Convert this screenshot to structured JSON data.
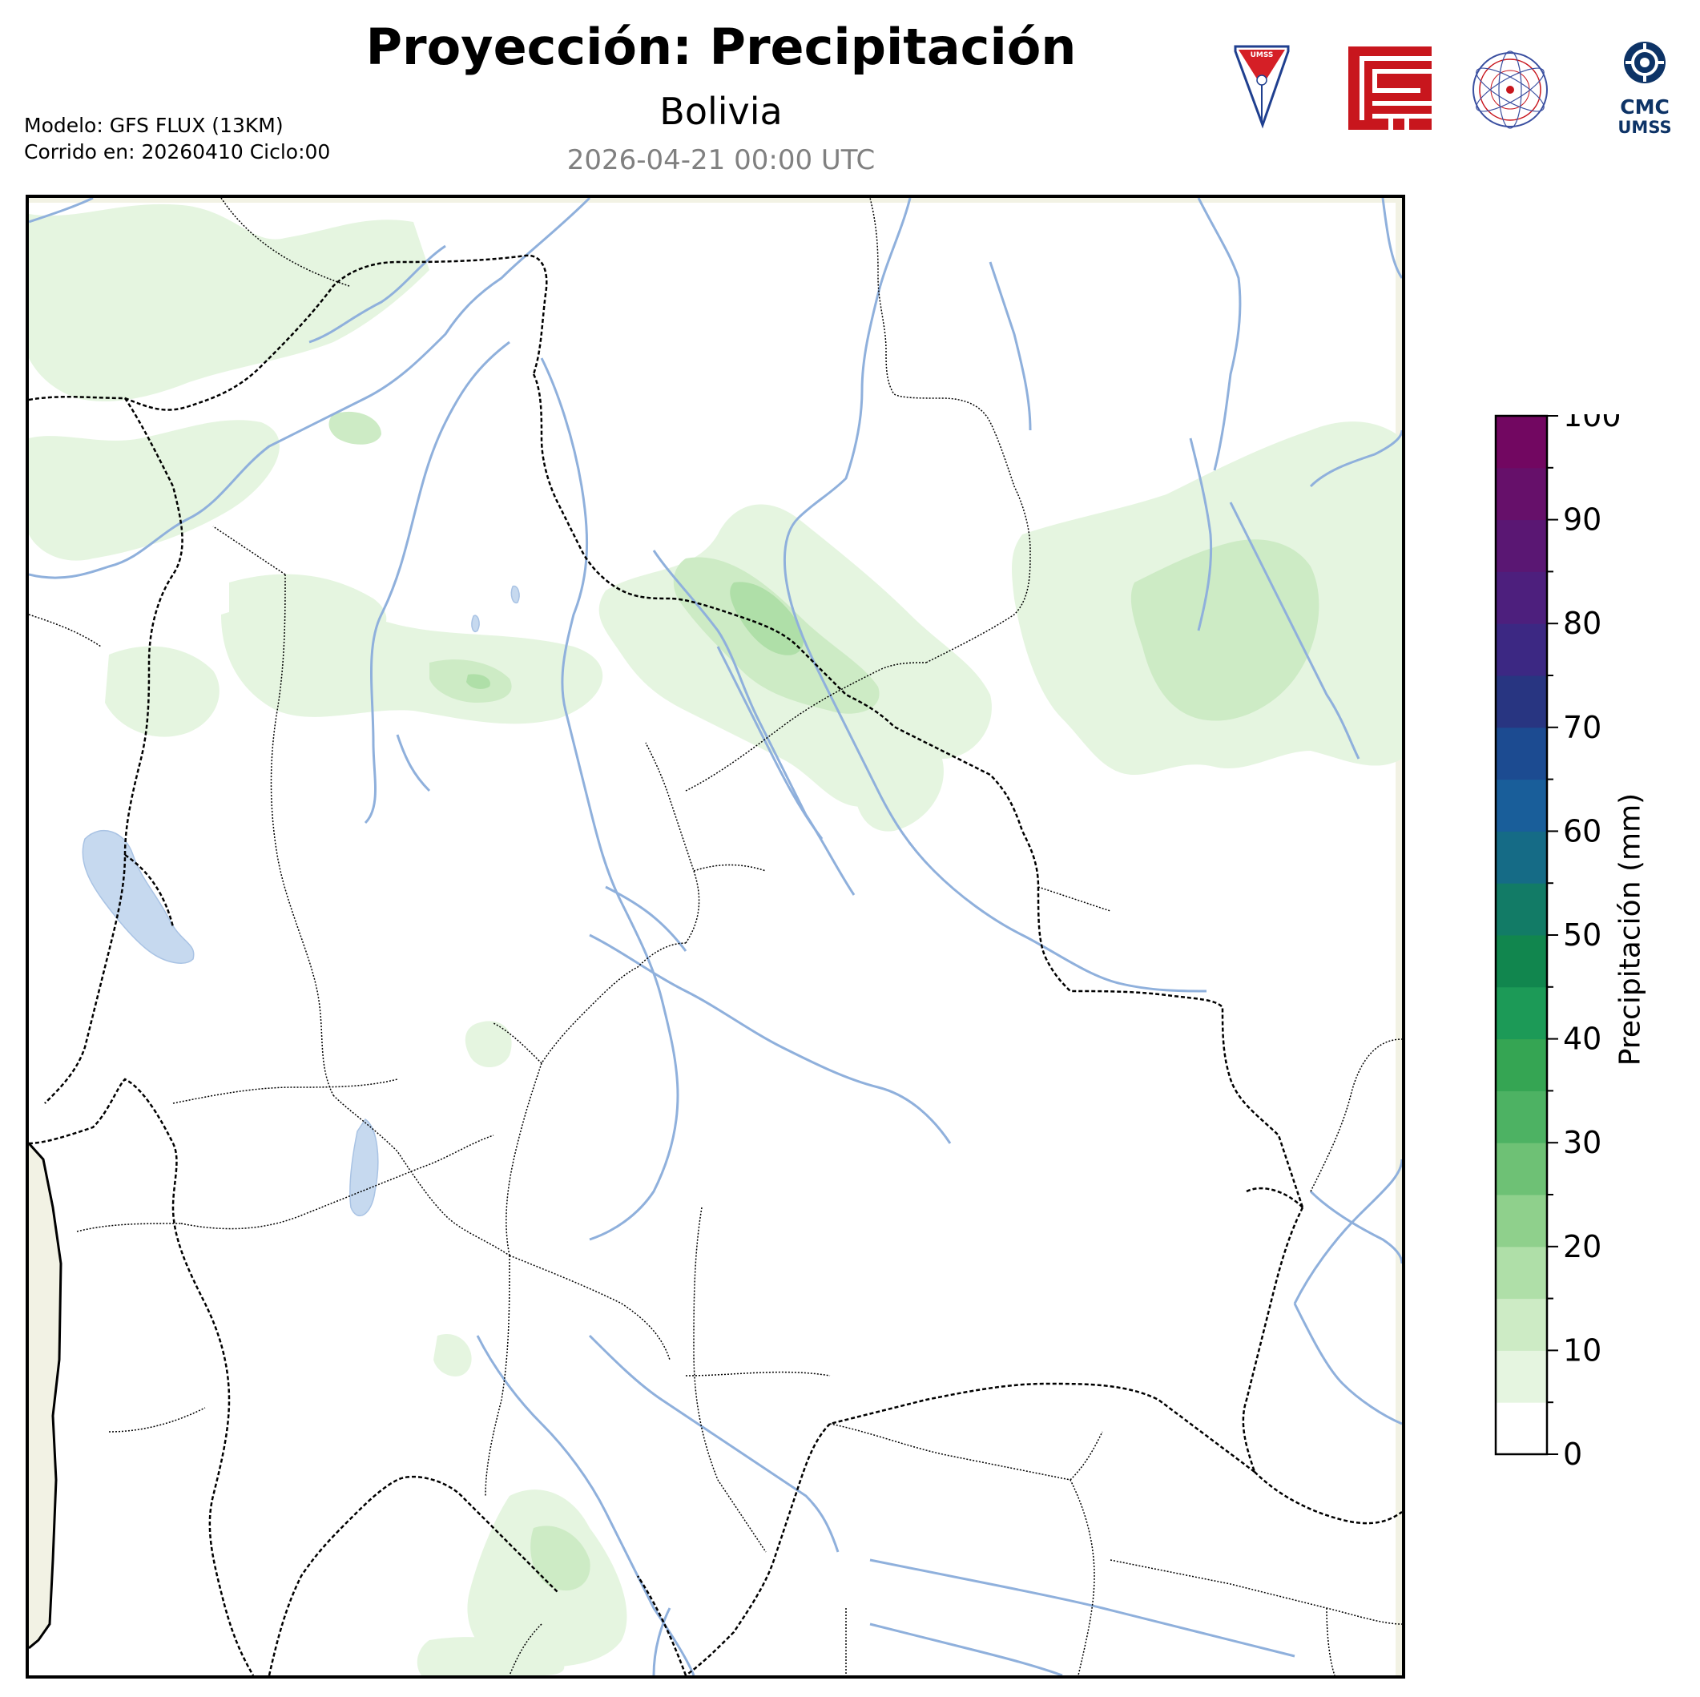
{
  "header": {
    "title": "Proyección: Precipitación",
    "region": "Bolivia",
    "valid_time": "2026-04-21 00:00 UTC",
    "model_line": "Modelo: GFS FLUX (13KM)",
    "run_line": "Corrido en: 20260410 Ciclo:00"
  },
  "logos": {
    "umss_text": "UMSS",
    "cmc_line1": "CMC",
    "cmc_line2": "UMSS"
  },
  "colorbar": {
    "label": "Precipitación (mm)",
    "ticks": [
      "0",
      "10",
      "20",
      "30",
      "40",
      "50",
      "60",
      "70",
      "80",
      "90",
      "100"
    ],
    "min": 0,
    "max": 100,
    "step": 5,
    "colors": [
      "#ffffff",
      "#e5f5e0",
      "#cdebc5",
      "#afdfa8",
      "#8fd08c",
      "#6ec175",
      "#4db263",
      "#35a553",
      "#1c9a57",
      "#11864e",
      "#127b66",
      "#156b86",
      "#195e9a",
      "#1c4b91",
      "#283581",
      "#3c2883",
      "#4d1f7d",
      "#5a1773",
      "#66106a",
      "#720761"
    ]
  },
  "map": {
    "ocean_color": "#f2f2e4",
    "lake_color": "#c6d9ef",
    "river_color": "#8fb0dc"
  }
}
